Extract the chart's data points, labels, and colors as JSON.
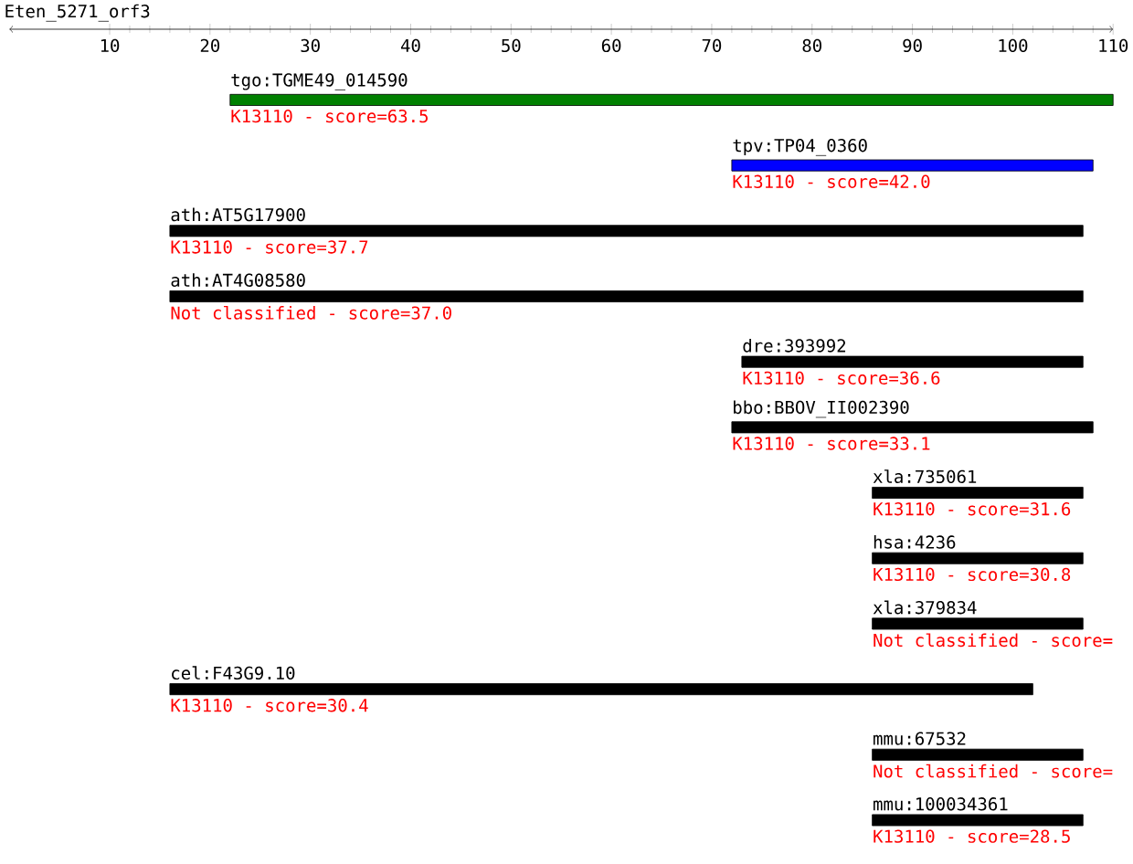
{
  "chart_data": {
    "type": "bar",
    "orientation": "horizontal",
    "title": "Eten_5271_orf3",
    "tick_labels": "x",
    "categories": [
      "tgo:TGME49_014590",
      "tpv:TP04_0360",
      "ath:AT5G17900",
      "ath:AT4G08580",
      "dre:393992",
      "bbo:BBOV_II002390",
      "xla:735061",
      "hsa:4236",
      "xla:379834",
      "cel:F43G9.10",
      "mmu:67532",
      "mmu:100034361"
    ],
    "base": [
      22,
      72,
      16,
      16,
      73,
      72,
      86,
      86,
      86,
      16,
      86,
      86
    ],
    "values": [
      88,
      36,
      91,
      91,
      34,
      36,
      21,
      21,
      21,
      86,
      21,
      21
    ],
    "colors": [
      "#008000",
      "#0000ff",
      "#000000",
      "#000000",
      "#000000",
      "#000000",
      "#000000",
      "#000000",
      "#000000",
      "#000000",
      "#000000",
      "#000000"
    ],
    "xlim": [
      0,
      110
    ],
    "xticks": [
      10,
      20,
      30,
      40,
      50,
      60,
      70,
      80,
      90,
      100,
      110
    ],
    "annotations": [
      "K13110 - score=63.5",
      "K13110 - score=42.0",
      "K13110 - score=37.7",
      "Not classified - score=37.0",
      "K13110 - score=36.6",
      "K13110 - score=33.1",
      "K13110 - score=31.6",
      "K13110 - score=30.8",
      "Not classified - score=",
      "K13110 - score=30.4",
      "Not classified - score=",
      "K13110 - score=28.5"
    ]
  }
}
